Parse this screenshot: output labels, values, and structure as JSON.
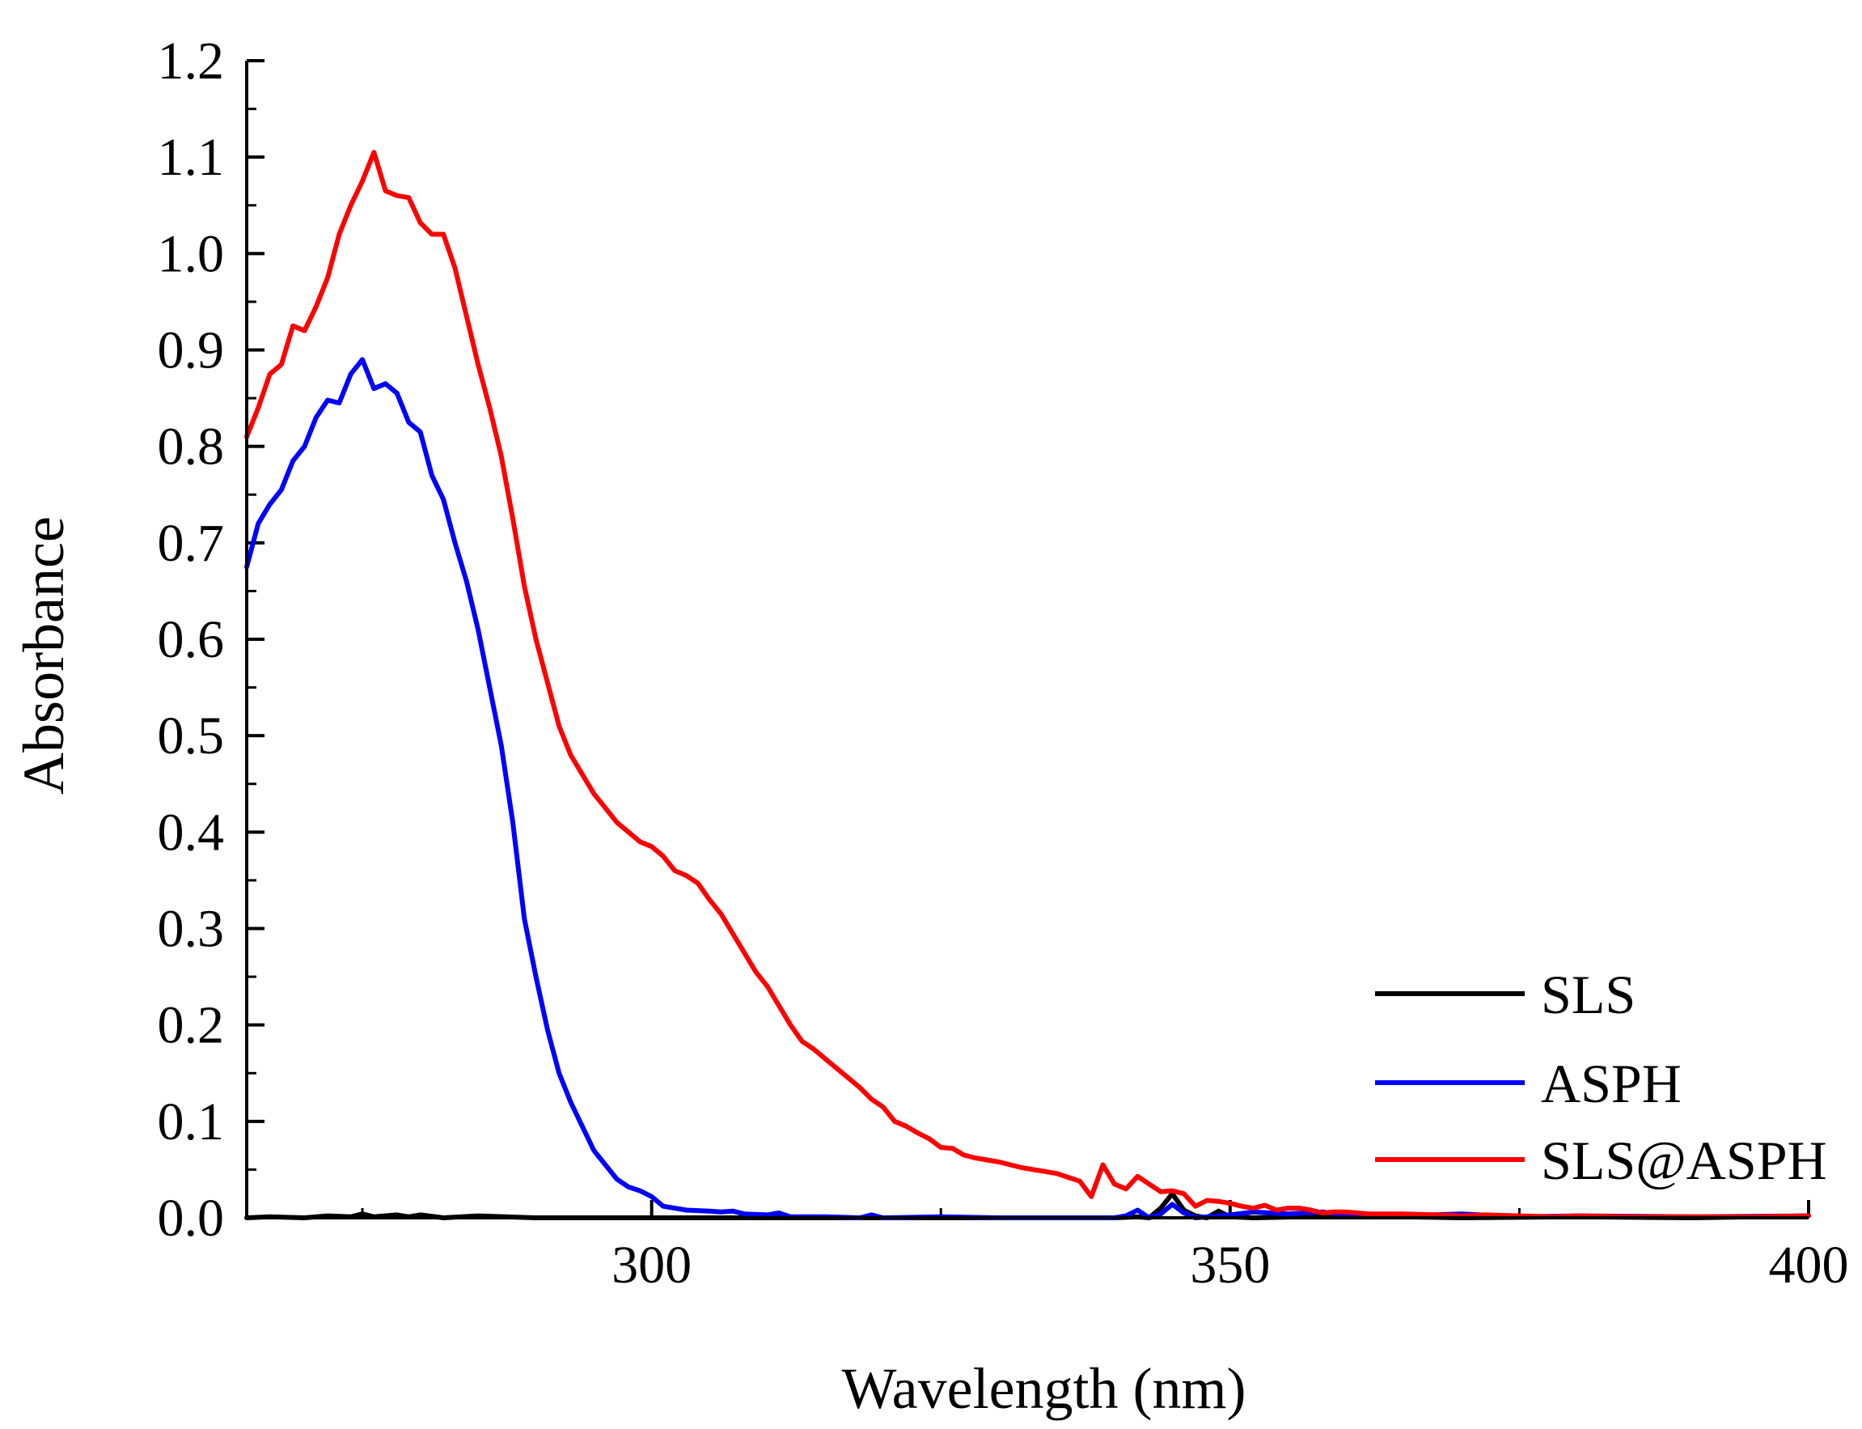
{
  "chart_data": {
    "type": "line",
    "title": "",
    "xlabel": "Wavelength (nm)",
    "ylabel": "Absorbance",
    "xlim": [
      265,
      400
    ],
    "ylim": [
      0,
      1.2
    ],
    "x_ticks": [
      300,
      350,
      400
    ],
    "y_ticks": [
      "0.0",
      "0.1",
      "0.2",
      "0.3",
      "0.4",
      "0.5",
      "0.6",
      "0.7",
      "0.8",
      "0.9",
      "1.0",
      "1.1",
      "1.2"
    ],
    "grid": false,
    "legend_position": "bottom-right",
    "series": [
      {
        "name": "SLS",
        "color": "#000000",
        "points": [
          [
            265,
            0.0
          ],
          [
            267,
            0.001
          ],
          [
            270,
            0.0
          ],
          [
            272,
            0.002
          ],
          [
            274,
            0.001
          ],
          [
            275,
            0.004
          ],
          [
            276,
            0.001
          ],
          [
            278,
            0.003
          ],
          [
            279,
            0.001
          ],
          [
            280,
            0.003
          ],
          [
            282,
            0.0
          ],
          [
            285,
            0.002
          ],
          [
            290,
            0.0
          ],
          [
            300,
            0.0
          ],
          [
            340,
            0.0
          ],
          [
            342,
            0.001
          ],
          [
            343,
            0.0
          ],
          [
            344,
            0.01
          ],
          [
            345,
            0.025
          ],
          [
            346,
            0.008
          ],
          [
            347,
            0.002
          ],
          [
            348,
            0.0
          ],
          [
            349,
            0.007
          ],
          [
            350,
            0.001
          ],
          [
            352,
            0.0
          ],
          [
            360,
            0.002
          ],
          [
            370,
            0.0
          ],
          [
            380,
            0.001
          ],
          [
            390,
            0.0
          ],
          [
            400,
            0.002
          ]
        ]
      },
      {
        "name": "ASPH",
        "color": "#0000ff",
        "points": [
          [
            265,
            0.675
          ],
          [
            266,
            0.72
          ],
          [
            267,
            0.74
          ],
          [
            268,
            0.755
          ],
          [
            269,
            0.785
          ],
          [
            270,
            0.8
          ],
          [
            271,
            0.83
          ],
          [
            272,
            0.848
          ],
          [
            273,
            0.845
          ],
          [
            274,
            0.875
          ],
          [
            275,
            0.89
          ],
          [
            276,
            0.86
          ],
          [
            277,
            0.865
          ],
          [
            278,
            0.855
          ],
          [
            279,
            0.825
          ],
          [
            280,
            0.815
          ],
          [
            281,
            0.77
          ],
          [
            282,
            0.745
          ],
          [
            283,
            0.7
          ],
          [
            284,
            0.66
          ],
          [
            285,
            0.61
          ],
          [
            286,
            0.55
          ],
          [
            287,
            0.49
          ],
          [
            288,
            0.41
          ],
          [
            289,
            0.31
          ],
          [
            290,
            0.25
          ],
          [
            291,
            0.195
          ],
          [
            292,
            0.15
          ],
          [
            293,
            0.12
          ],
          [
            294,
            0.095
          ],
          [
            295,
            0.07
          ],
          [
            296,
            0.055
          ],
          [
            297,
            0.04
          ],
          [
            298,
            0.032
          ],
          [
            299,
            0.028
          ],
          [
            300,
            0.022
          ],
          [
            301,
            0.012
          ],
          [
            302,
            0.01
          ],
          [
            303,
            0.008
          ],
          [
            305,
            0.007
          ],
          [
            306,
            0.006
          ],
          [
            307,
            0.007
          ],
          [
            308,
            0.004
          ],
          [
            310,
            0.003
          ],
          [
            311,
            0.005
          ],
          [
            312,
            0.001
          ],
          [
            315,
            0.001
          ],
          [
            318,
            0.0
          ],
          [
            319,
            0.003
          ],
          [
            320,
            0.0
          ],
          [
            325,
            0.001
          ],
          [
            330,
            0.0
          ],
          [
            340,
            0.0
          ],
          [
            341,
            0.002
          ],
          [
            342,
            0.008
          ],
          [
            343,
            0.0
          ],
          [
            344,
            0.004
          ],
          [
            345,
            0.014
          ],
          [
            346,
            0.005
          ],
          [
            347,
            0.0
          ],
          [
            350,
            0.003
          ],
          [
            352,
            0.006
          ],
          [
            355,
            0.004
          ],
          [
            358,
            0.006
          ],
          [
            360,
            0.003
          ],
          [
            365,
            0.002
          ],
          [
            370,
            0.004
          ],
          [
            375,
            0.001
          ],
          [
            380,
            0.002
          ],
          [
            390,
            0.001
          ],
          [
            400,
            0.002
          ]
        ]
      },
      {
        "name": "SLS@ASPH",
        "color": "#ff0000",
        "points": [
          [
            265,
            0.81
          ],
          [
            266,
            0.84
          ],
          [
            267,
            0.875
          ],
          [
            268,
            0.885
          ],
          [
            269,
            0.925
          ],
          [
            270,
            0.92
          ],
          [
            271,
            0.945
          ],
          [
            272,
            0.975
          ],
          [
            273,
            1.02
          ],
          [
            274,
            1.05
          ],
          [
            275,
            1.075
          ],
          [
            276,
            1.105
          ],
          [
            277,
            1.065
          ],
          [
            278,
            1.06
          ],
          [
            279,
            1.058
          ],
          [
            280,
            1.032
          ],
          [
            281,
            1.02
          ],
          [
            282,
            1.02
          ],
          [
            283,
            0.985
          ],
          [
            284,
            0.935
          ],
          [
            285,
            0.885
          ],
          [
            286,
            0.84
          ],
          [
            287,
            0.79
          ],
          [
            288,
            0.725
          ],
          [
            289,
            0.655
          ],
          [
            290,
            0.6
          ],
          [
            291,
            0.555
          ],
          [
            292,
            0.51
          ],
          [
            293,
            0.48
          ],
          [
            294,
            0.46
          ],
          [
            295,
            0.44
          ],
          [
            296,
            0.425
          ],
          [
            297,
            0.41
          ],
          [
            298,
            0.4
          ],
          [
            299,
            0.39
          ],
          [
            300,
            0.385
          ],
          [
            301,
            0.375
          ],
          [
            302,
            0.36
          ],
          [
            303,
            0.355
          ],
          [
            304,
            0.347
          ],
          [
            305,
            0.33
          ],
          [
            306,
            0.315
          ],
          [
            307,
            0.295
          ],
          [
            308,
            0.275
          ],
          [
            309,
            0.255
          ],
          [
            310,
            0.24
          ],
          [
            311,
            0.22
          ],
          [
            312,
            0.2
          ],
          [
            313,
            0.183
          ],
          [
            314,
            0.175
          ],
          [
            315,
            0.165
          ],
          [
            316,
            0.155
          ],
          [
            317,
            0.145
          ],
          [
            318,
            0.135
          ],
          [
            319,
            0.123
          ],
          [
            320,
            0.115
          ],
          [
            321,
            0.1
          ],
          [
            322,
            0.095
          ],
          [
            323,
            0.088
          ],
          [
            324,
            0.082
          ],
          [
            325,
            0.073
          ],
          [
            326,
            0.072
          ],
          [
            327,
            0.065
          ],
          [
            328,
            0.062
          ],
          [
            329,
            0.06
          ],
          [
            330,
            0.058
          ],
          [
            331,
            0.055
          ],
          [
            332,
            0.052
          ],
          [
            333,
            0.05
          ],
          [
            334,
            0.048
          ],
          [
            335,
            0.046
          ],
          [
            336,
            0.042
          ],
          [
            337,
            0.038
          ],
          [
            338,
            0.022
          ],
          [
            339,
            0.055
          ],
          [
            340,
            0.035
          ],
          [
            341,
            0.03
          ],
          [
            342,
            0.043
          ],
          [
            343,
            0.035
          ],
          [
            344,
            0.027
          ],
          [
            345,
            0.028
          ],
          [
            346,
            0.025
          ],
          [
            347,
            0.012
          ],
          [
            348,
            0.018
          ],
          [
            349,
            0.017
          ],
          [
            350,
            0.015
          ],
          [
            351,
            0.012
          ],
          [
            352,
            0.01
          ],
          [
            353,
            0.013
          ],
          [
            354,
            0.008
          ],
          [
            355,
            0.01
          ],
          [
            356,
            0.01
          ],
          [
            357,
            0.008
          ],
          [
            358,
            0.005
          ],
          [
            359,
            0.006
          ],
          [
            360,
            0.006
          ],
          [
            362,
            0.004
          ],
          [
            365,
            0.004
          ],
          [
            368,
            0.003
          ],
          [
            370,
            0.002
          ],
          [
            372,
            0.003
          ],
          [
            375,
            0.002
          ],
          [
            378,
            0.001
          ],
          [
            380,
            0.002
          ],
          [
            385,
            0.001
          ],
          [
            390,
            0.001
          ],
          [
            395,
            0.001
          ],
          [
            400,
            0.002
          ]
        ]
      }
    ]
  }
}
